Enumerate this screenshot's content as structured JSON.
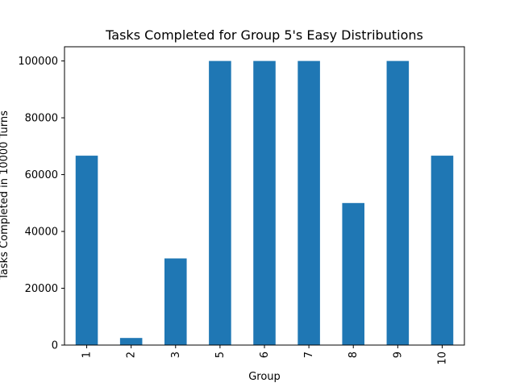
{
  "chart_data": {
    "type": "bar",
    "title": "Tasks Completed for Group 5's Easy Distributions",
    "xlabel": "Group",
    "ylabel": "Tasks Completed in 10000 Turns",
    "categories": [
      "1",
      "2",
      "3",
      "5",
      "6",
      "7",
      "8",
      "9",
      "10"
    ],
    "values": [
      66667,
      2500,
      30500,
      100000,
      100000,
      100000,
      50000,
      100000,
      66667
    ],
    "ylim": [
      0,
      105000
    ],
    "yticks": [
      0,
      20000,
      40000,
      60000,
      80000,
      100000
    ],
    "ytick_labels": [
      "0",
      "20000",
      "40000",
      "60000",
      "80000",
      "100000"
    ],
    "bar_color": "#1f77b4",
    "grid": false,
    "legend": "none"
  }
}
